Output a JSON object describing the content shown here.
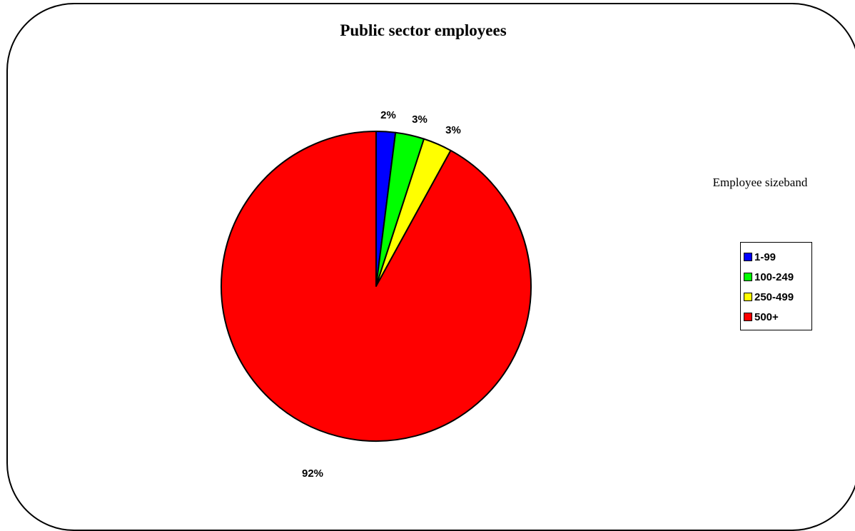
{
  "chart_data": {
    "type": "pie",
    "title": "Public sector employees",
    "legend_title": "Employee sizeband",
    "legend_position": "right",
    "categories": [
      "1-99",
      "100-249",
      "250-499",
      "500+"
    ],
    "values": [
      2,
      3,
      3,
      92
    ],
    "labels": [
      "2%",
      "3%",
      "3%",
      "92%"
    ],
    "colors": [
      "#0000ff",
      "#00ff00",
      "#ffff00",
      "#ff0000"
    ]
  }
}
